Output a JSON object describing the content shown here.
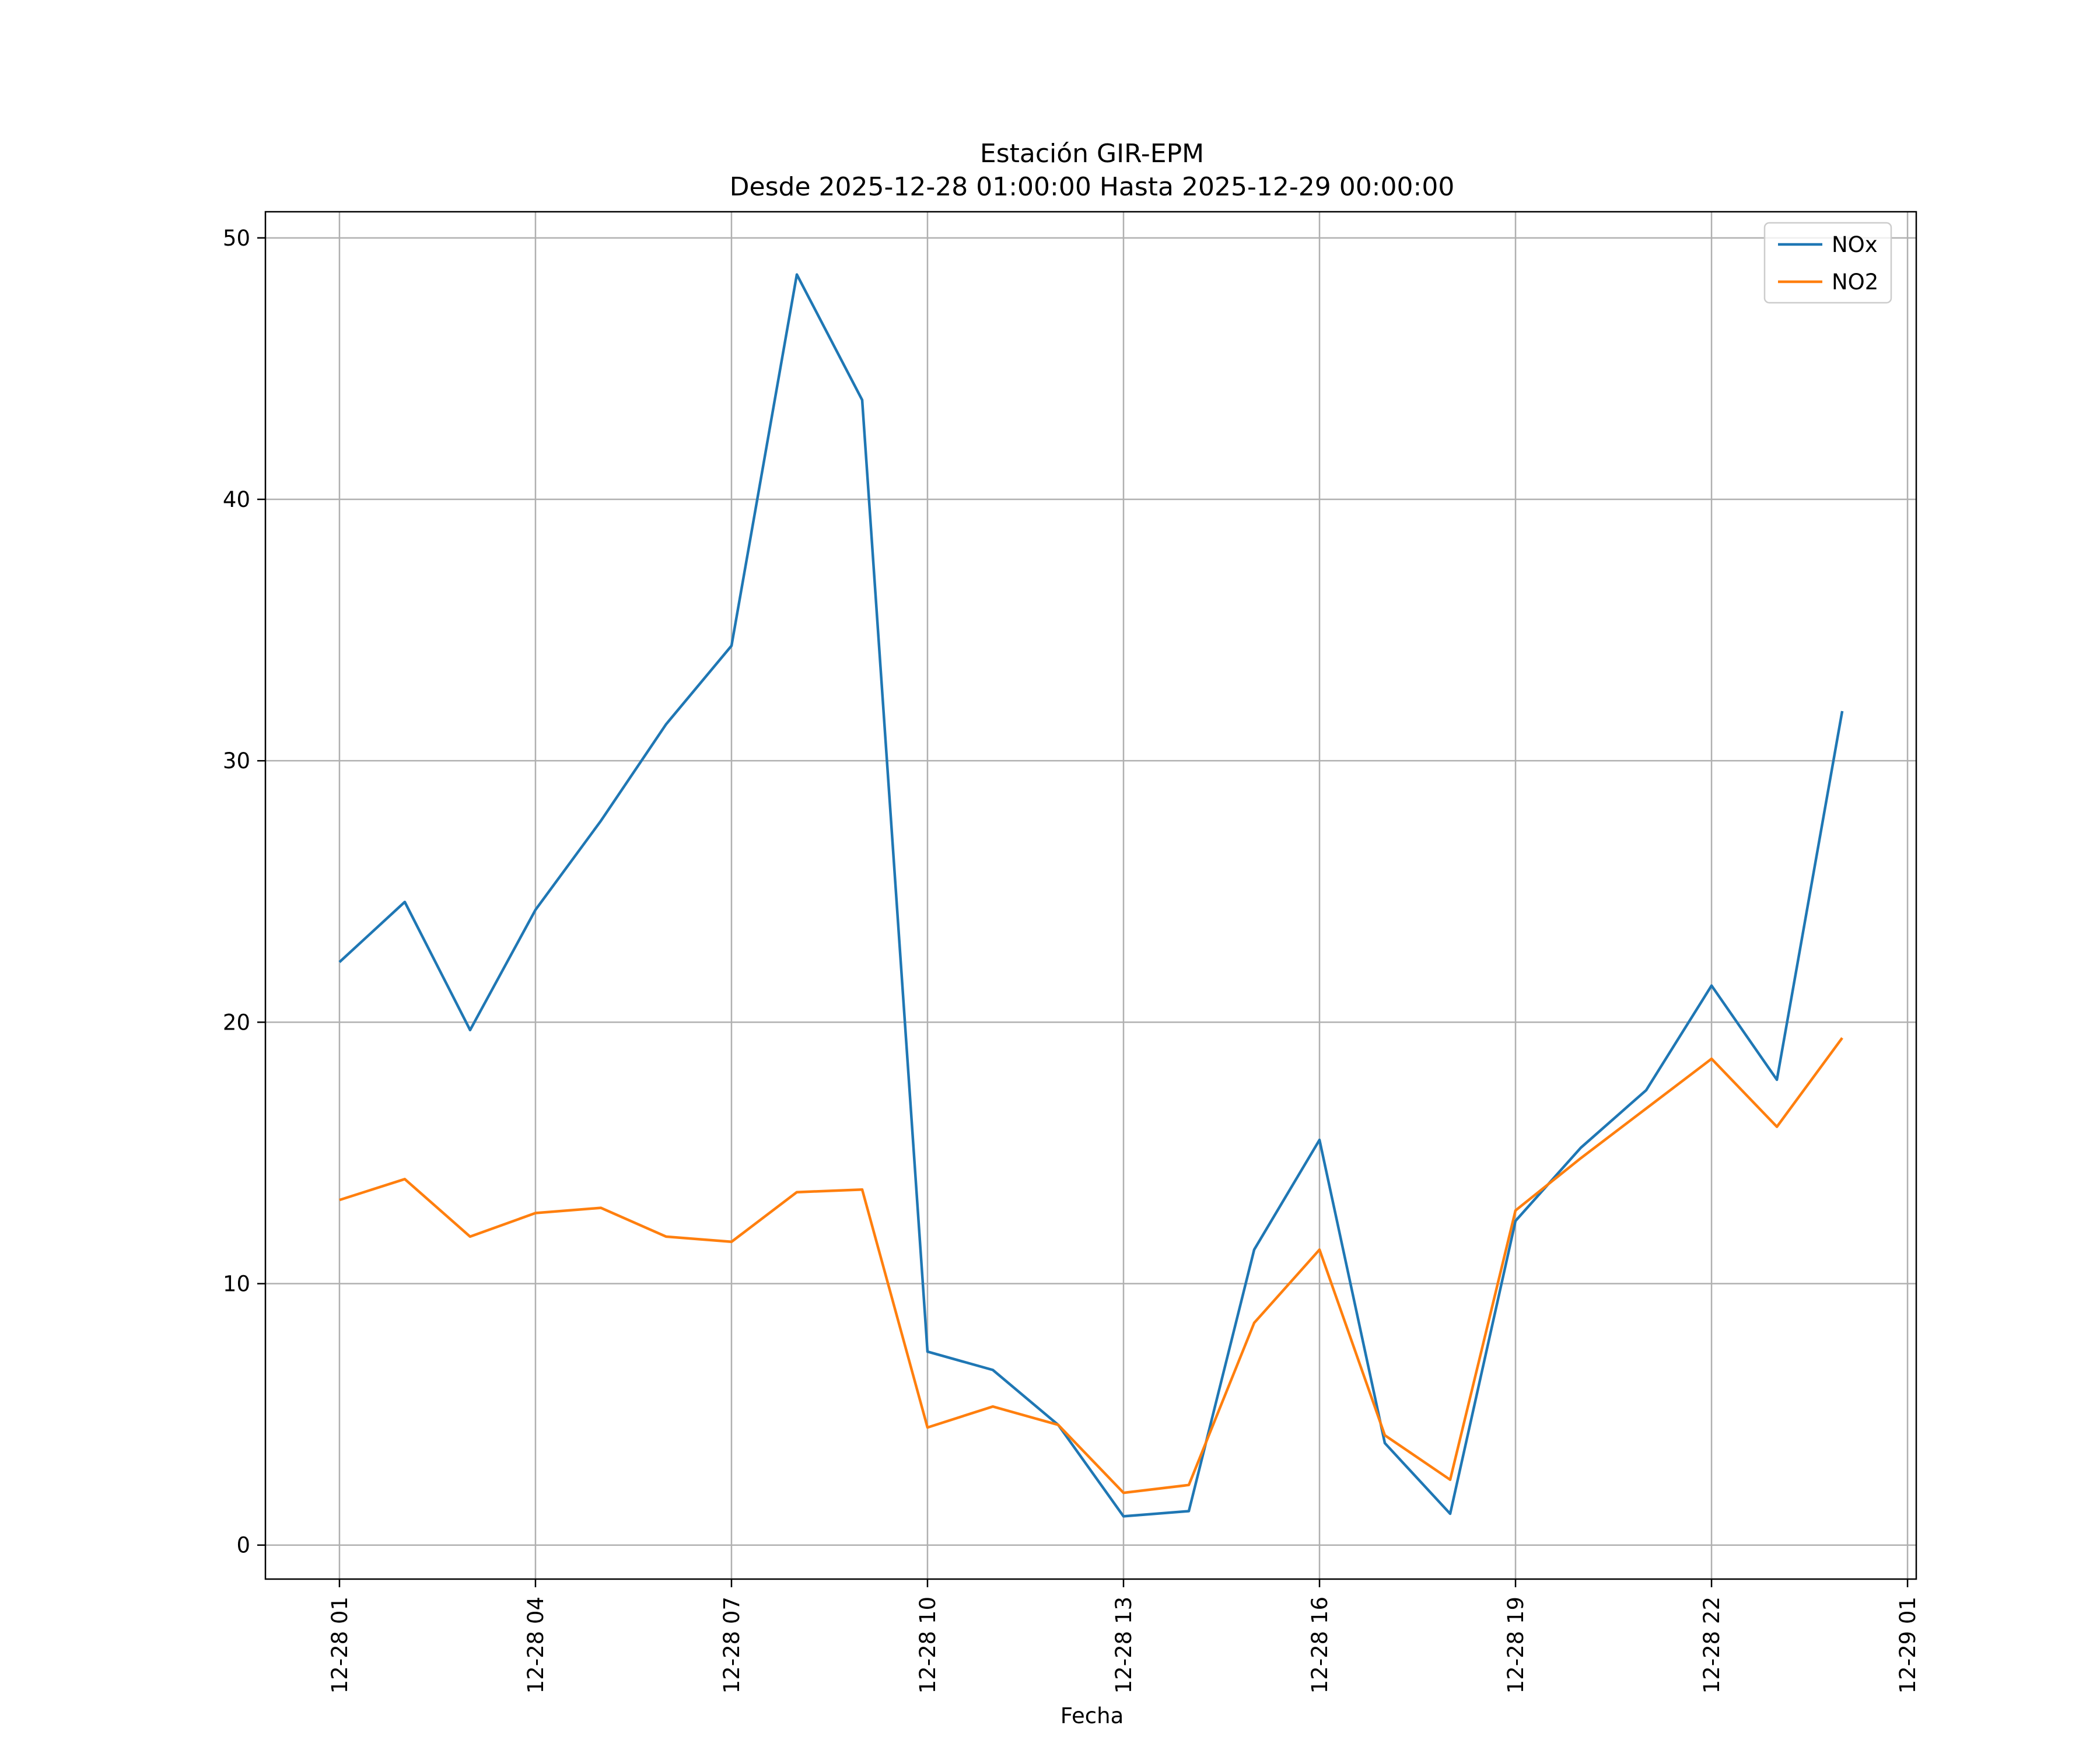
{
  "chart_data": {
    "type": "line",
    "title": "Estación GIR-EPM",
    "subtitle": "Desde 2025-12-28 01:00:00 Hasta 2025-12-29 00:00:00",
    "xlabel": "Fecha",
    "ylabel": "",
    "x": [
      "2025-12-28 01:00",
      "2025-12-28 02:00",
      "2025-12-28 03:00",
      "2025-12-28 04:00",
      "2025-12-28 05:00",
      "2025-12-28 06:00",
      "2025-12-28 07:00",
      "2025-12-28 08:00",
      "2025-12-28 09:00",
      "2025-12-28 10:00",
      "2025-12-28 11:00",
      "2025-12-28 12:00",
      "2025-12-28 13:00",
      "2025-12-28 14:00",
      "2025-12-28 15:00",
      "2025-12-28 16:00",
      "2025-12-28 17:00",
      "2025-12-28 18:00",
      "2025-12-28 19:00",
      "2025-12-28 20:00",
      "2025-12-28 21:00",
      "2025-12-28 22:00",
      "2025-12-28 23:00",
      "2025-12-29 00:00"
    ],
    "series": [
      {
        "name": "NOx",
        "color": "#1f77b4",
        "values": [
          22.3,
          24.6,
          19.7,
          24.3,
          27.7,
          31.4,
          34.4,
          48.6,
          43.8,
          7.4,
          6.7,
          4.6,
          1.1,
          1.3,
          11.3,
          15.5,
          3.9,
          1.2,
          12.4,
          15.2,
          17.4,
          21.4,
          17.8,
          31.9
        ]
      },
      {
        "name": "NO2",
        "color": "#ff7f0e",
        "values": [
          13.2,
          14.0,
          11.8,
          12.7,
          12.9,
          11.8,
          11.6,
          13.5,
          13.6,
          4.5,
          5.3,
          4.6,
          2.0,
          2.3,
          8.5,
          11.3,
          4.2,
          2.5,
          12.8,
          14.8,
          16.7,
          18.6,
          16.0,
          19.4
        ]
      }
    ],
    "xticks": [
      "12-28 01",
      "12-28 04",
      "12-28 07",
      "12-28 10",
      "12-28 13",
      "12-28 16",
      "12-28 19",
      "12-28 22",
      "12-29 01"
    ],
    "xlim": [
      "2025-12-27 23:52",
      "2025-12-29 01:08"
    ],
    "yticks": [
      "0",
      "10",
      "20",
      "30",
      "40",
      "50"
    ],
    "ylim": [
      -1.3,
      51.0
    ],
    "grid": true,
    "legend_position": "upper right"
  }
}
